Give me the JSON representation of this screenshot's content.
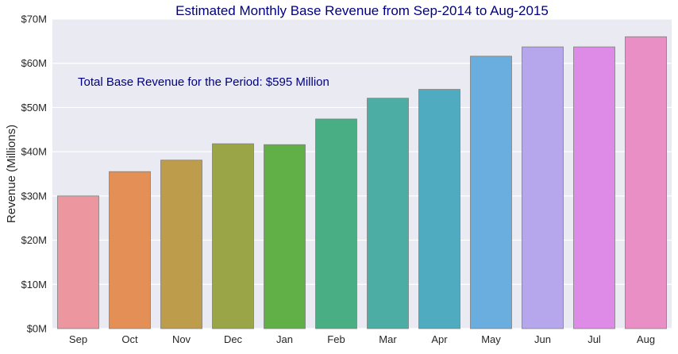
{
  "chart_data": {
    "type": "bar",
    "title": "Estimated Monthly Base Revenue from Sep-2014 to Aug-2015",
    "ylabel": "Revenue (Millions)",
    "xlabel": "",
    "annotation": "Total Base Revenue for the Period: $595 Million",
    "categories": [
      "Sep",
      "Oct",
      "Nov",
      "Dec",
      "Jan",
      "Feb",
      "Mar",
      "Apr",
      "May",
      "Jun",
      "Jul",
      "Aug"
    ],
    "values": [
      30.0,
      35.5,
      38.1,
      41.8,
      41.6,
      47.4,
      52.1,
      54.1,
      61.6,
      63.7,
      63.7,
      66.0
    ],
    "ylim": [
      0,
      70
    ],
    "yticks": [
      0,
      10,
      20,
      30,
      40,
      50,
      60,
      70
    ],
    "ytick_labels": [
      "$0M",
      "$10M",
      "$20M",
      "$30M",
      "$40M",
      "$50M",
      "$60M",
      "$70M"
    ],
    "grid": true,
    "colors": {
      "background": "#eaeaf2",
      "grid": "#ffffff",
      "title": "#000080",
      "annotation": "#000080",
      "axis_text": "#262626",
      "bar_edge": "#7f7f7f",
      "bars": [
        "#ec97a0",
        "#e48f55",
        "#bd9c4c",
        "#9aa548",
        "#61af47",
        "#4aae85",
        "#4cada4",
        "#4fabbf",
        "#6aaee0",
        "#b6a6ec",
        "#de8be8",
        "#ea8fc5"
      ]
    }
  }
}
